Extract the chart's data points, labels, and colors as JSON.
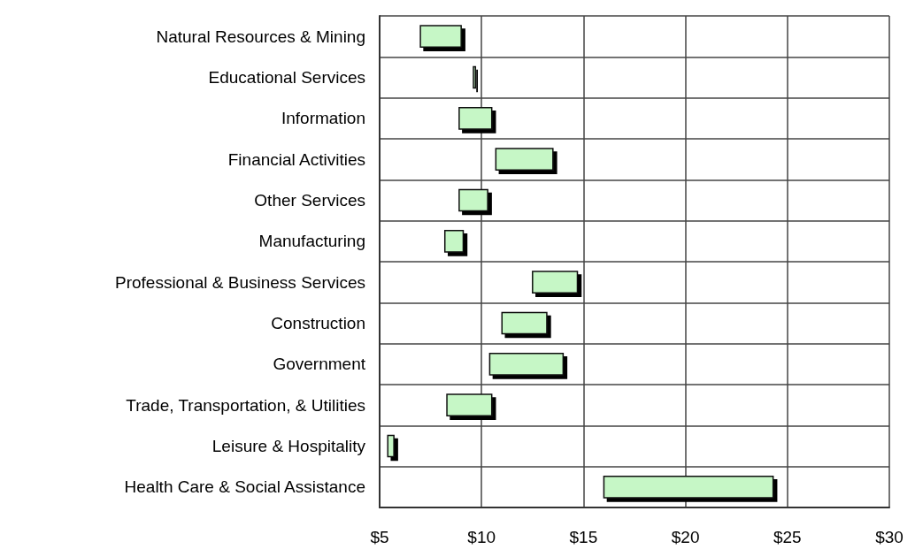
{
  "chart_data": {
    "type": "bar",
    "orientation": "horizontal",
    "categories": [
      "Natural Resources & Mining",
      "Educational Services",
      "Information",
      "Financial Activities",
      "Other Services",
      "Manufacturing",
      "Professional & Business Services",
      "Construction",
      "Government",
      "Trade, Transportation, & Utilities",
      "Leisure & Hospitality",
      "Health Care & Social Assistance"
    ],
    "base": [
      7.0,
      9.6,
      8.9,
      10.7,
      8.9,
      8.2,
      12.5,
      11.0,
      10.4,
      8.3,
      5.4,
      16.0
    ],
    "values": [
      2.0,
      0.1,
      1.6,
      2.8,
      1.4,
      0.9,
      2.2,
      2.2,
      3.6,
      2.2,
      0.3,
      8.3
    ],
    "color": "#c6f7c6",
    "xlim": [
      5,
      30
    ],
    "xticks": [
      {
        "value": 5,
        "label": "$5"
      },
      {
        "value": 10,
        "label": "$10"
      },
      {
        "value": 15,
        "label": "$15"
      },
      {
        "value": 20,
        "label": "$20"
      },
      {
        "value": 25,
        "label": "$25"
      },
      {
        "value": 30,
        "label": "$30"
      }
    ],
    "grid": true
  }
}
